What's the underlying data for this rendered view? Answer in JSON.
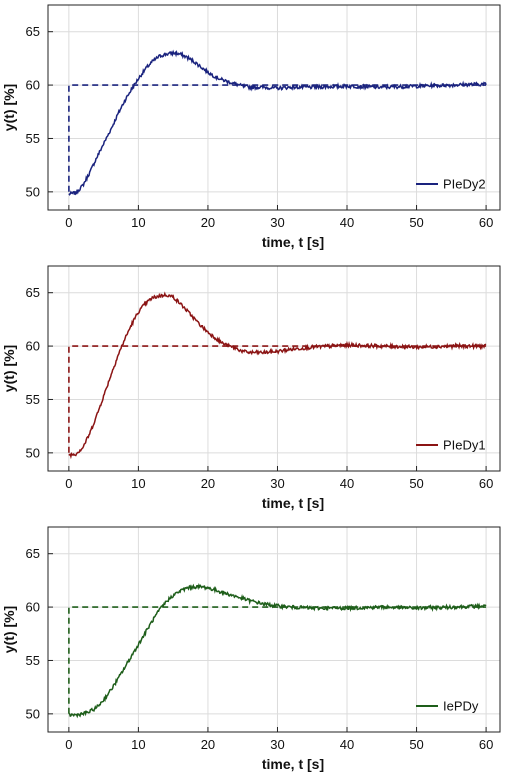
{
  "chart_data": [
    {
      "type": "line",
      "xlabel": "time, t [s]",
      "ylabel": "y(t) [%]",
      "xlim": [
        -3,
        62
      ],
      "ylim": [
        48.3,
        67.5
      ],
      "xticks": [
        0,
        10,
        20,
        30,
        40,
        50,
        60
      ],
      "yticks": [
        50,
        55,
        60,
        65
      ],
      "grid": true,
      "legend_position": "bottom-right",
      "colors": {
        "response": "#1a237e",
        "setpoint": "#1a237e"
      },
      "series": [
        {
          "name": "PIeDy2",
          "style": "solid",
          "x": [
            0,
            1,
            2,
            3,
            4,
            5,
            6,
            7,
            8,
            9,
            10,
            11,
            12,
            13,
            14,
            15,
            16,
            17,
            18,
            19,
            20,
            21,
            22,
            23,
            24,
            25,
            26,
            28,
            30,
            32,
            35,
            40,
            45,
            50,
            55,
            60
          ],
          "y": [
            49.8,
            49.9,
            50.6,
            51.8,
            53.2,
            54.5,
            55.8,
            57.2,
            58.5,
            59.6,
            60.6,
            61.5,
            62.2,
            62.7,
            62.9,
            63.0,
            62.9,
            62.6,
            62.2,
            61.7,
            61.2,
            60.8,
            60.5,
            60.3,
            60.1,
            59.9,
            59.8,
            59.8,
            59.7,
            59.8,
            59.8,
            59.9,
            59.8,
            59.9,
            60.0,
            60.1
          ]
        },
        {
          "name": "",
          "style": "dashed",
          "x": [
            0,
            0,
            60
          ],
          "y": [
            50,
            60,
            60
          ]
        }
      ]
    },
    {
      "type": "line",
      "xlabel": "time, t [s]",
      "ylabel": "y(t) [%]",
      "xlim": [
        -3,
        62
      ],
      "ylim": [
        48.3,
        67.5
      ],
      "xticks": [
        0,
        10,
        20,
        30,
        40,
        50,
        60
      ],
      "yticks": [
        50,
        55,
        60,
        65
      ],
      "grid": true,
      "legend_position": "bottom-right",
      "colors": {
        "response": "#8b1414",
        "setpoint": "#8b1414"
      },
      "series": [
        {
          "name": "PIeDy1",
          "style": "solid",
          "x": [
            0,
            1,
            2,
            3,
            4,
            5,
            6,
            7,
            8,
            9,
            10,
            11,
            12,
            13,
            14,
            15,
            16,
            17,
            18,
            19,
            20,
            21,
            22,
            23,
            24,
            25,
            26,
            28,
            30,
            32,
            35,
            40,
            45,
            50,
            55,
            60
          ],
          "y": [
            49.8,
            49.9,
            50.5,
            51.8,
            53.5,
            55.3,
            57.2,
            59.0,
            60.6,
            62.0,
            63.2,
            64.0,
            64.5,
            64.7,
            64.8,
            64.6,
            64.0,
            63.3,
            62.6,
            61.9,
            61.3,
            60.8,
            60.3,
            60.0,
            59.8,
            59.5,
            59.4,
            59.4,
            59.5,
            59.7,
            59.9,
            60.1,
            60.0,
            59.9,
            60.0,
            60.0
          ]
        },
        {
          "name": "",
          "style": "dashed",
          "x": [
            0,
            0,
            60
          ],
          "y": [
            50,
            60,
            60
          ]
        }
      ]
    },
    {
      "type": "line",
      "xlabel": "time, t [s]",
      "ylabel": "y(t) [%]",
      "xlim": [
        -3,
        62
      ],
      "ylim": [
        48.3,
        67.5
      ],
      "xticks": [
        0,
        10,
        20,
        30,
        40,
        50,
        60
      ],
      "yticks": [
        50,
        55,
        60,
        65
      ],
      "grid": true,
      "legend_position": "bottom-right",
      "colors": {
        "response": "#1e5e1a",
        "setpoint": "#1e5e1a"
      },
      "series": [
        {
          "name": "IePDy",
          "style": "solid",
          "x": [
            0,
            1,
            2,
            3,
            4,
            5,
            6,
            7,
            8,
            9,
            10,
            11,
            12,
            13,
            14,
            15,
            16,
            17,
            18,
            19,
            20,
            21,
            22,
            23,
            24,
            25,
            26,
            28,
            30,
            32,
            35,
            40,
            45,
            50,
            55,
            60
          ],
          "y": [
            49.9,
            49.9,
            50.0,
            50.2,
            50.6,
            51.3,
            52.2,
            53.2,
            54.3,
            55.4,
            56.5,
            57.6,
            58.7,
            59.7,
            60.5,
            61.1,
            61.5,
            61.8,
            61.9,
            61.9,
            61.8,
            61.6,
            61.4,
            61.2,
            61.0,
            60.8,
            60.6,
            60.3,
            60.1,
            60.0,
            59.9,
            59.9,
            60.0,
            59.9,
            60.0,
            60.1
          ]
        },
        {
          "name": "",
          "style": "dashed",
          "x": [
            0,
            0,
            60
          ],
          "y": [
            50,
            60,
            60
          ]
        }
      ]
    }
  ]
}
